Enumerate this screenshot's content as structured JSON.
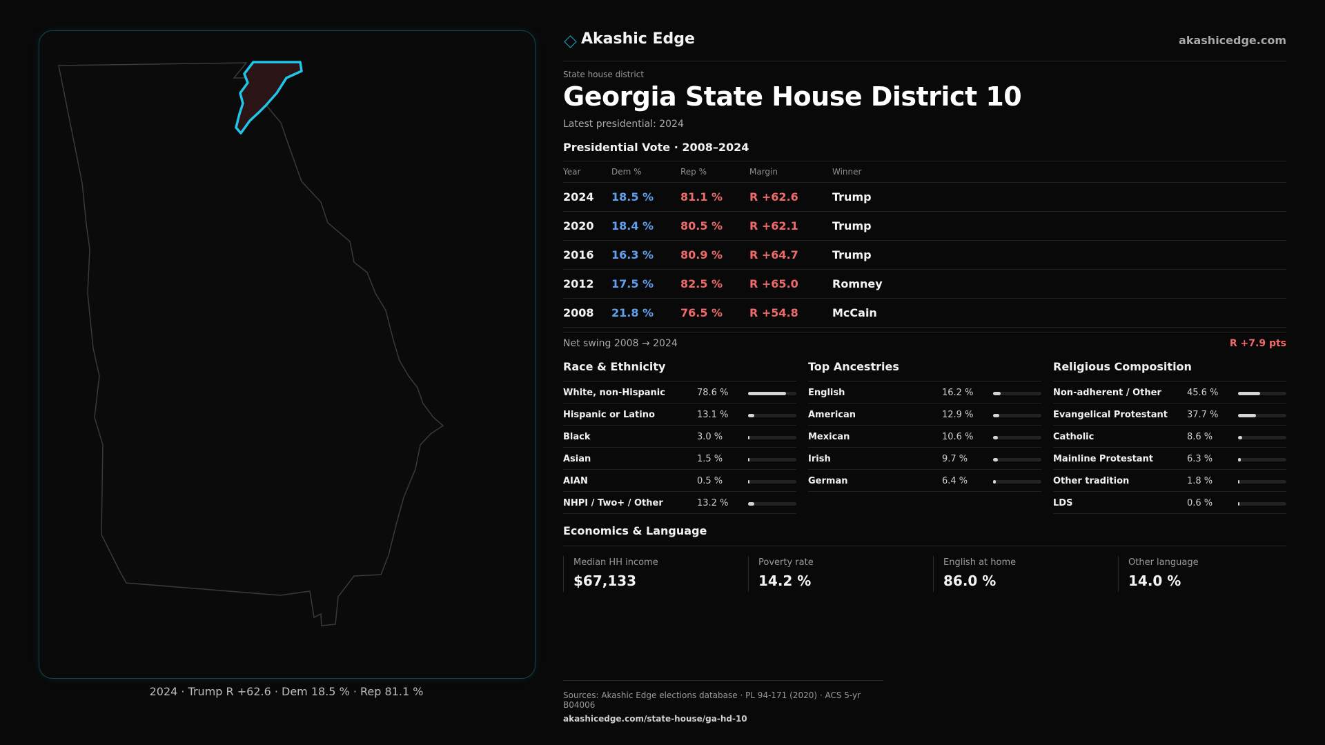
{
  "brand": {
    "name": "Akashic Edge",
    "site": "akashicedge.com"
  },
  "header": {
    "kicker": "State house district",
    "title": "Georgia State House District 10",
    "latest": "Latest presidential: 2024"
  },
  "map": {
    "caption": "2024 · Trump R +62.6 · Dem 18.5 % · Rep 81.1 %",
    "highlight_color": "#1fc6e8"
  },
  "presidential": {
    "heading": "Presidential Vote · 2008–2024",
    "columns": [
      "Year",
      "Dem %",
      "Rep %",
      "Margin",
      "Winner"
    ],
    "rows": [
      {
        "year": "2024",
        "dem": "18.5 %",
        "rep": "81.1 %",
        "margin": "R +62.6",
        "winner": "Trump"
      },
      {
        "year": "2020",
        "dem": "18.4 %",
        "rep": "80.5 %",
        "margin": "R +62.1",
        "winner": "Trump"
      },
      {
        "year": "2016",
        "dem": "16.3 %",
        "rep": "80.9 %",
        "margin": "R +64.7",
        "winner": "Trump"
      },
      {
        "year": "2012",
        "dem": "17.5 %",
        "rep": "82.5 %",
        "margin": "R +65.0",
        "winner": "Romney"
      },
      {
        "year": "2008",
        "dem": "21.8 %",
        "rep": "76.5 %",
        "margin": "R +54.8",
        "winner": "McCain"
      }
    ],
    "swing_label": "Net swing 2008 → 2024",
    "swing_value": "R +7.9 pts"
  },
  "race": {
    "heading": "Race & Ethnicity",
    "items": [
      {
        "label": "White, non-Hispanic",
        "value": "78.6 %",
        "pct": 78.6
      },
      {
        "label": "Hispanic or Latino",
        "value": "13.1 %",
        "pct": 13.1
      },
      {
        "label": "Black",
        "value": "3.0 %",
        "pct": 3.0
      },
      {
        "label": "Asian",
        "value": "1.5 %",
        "pct": 1.5
      },
      {
        "label": "AIAN",
        "value": "0.5 %",
        "pct": 0.5
      },
      {
        "label": "NHPI / Two+ / Other",
        "value": "13.2 %",
        "pct": 13.2
      }
    ]
  },
  "ancestry": {
    "heading": "Top Ancestries",
    "items": [
      {
        "label": "English",
        "value": "16.2 %",
        "pct": 16.2
      },
      {
        "label": "American",
        "value": "12.9 %",
        "pct": 12.9
      },
      {
        "label": "Mexican",
        "value": "10.6 %",
        "pct": 10.6
      },
      {
        "label": "Irish",
        "value": "9.7 %",
        "pct": 9.7
      },
      {
        "label": "German",
        "value": "6.4 %",
        "pct": 6.4
      }
    ]
  },
  "religion": {
    "heading": "Religious Composition",
    "items": [
      {
        "label": "Non-adherent / Other",
        "value": "45.6 %",
        "pct": 45.6
      },
      {
        "label": "Evangelical Protestant",
        "value": "37.7 %",
        "pct": 37.7
      },
      {
        "label": "Catholic",
        "value": "8.6 %",
        "pct": 8.6
      },
      {
        "label": "Mainline Protestant",
        "value": "6.3 %",
        "pct": 6.3
      },
      {
        "label": "Other tradition",
        "value": "1.8 %",
        "pct": 1.8
      },
      {
        "label": "LDS",
        "value": "0.6 %",
        "pct": 0.6
      }
    ]
  },
  "economics": {
    "heading": "Economics & Language",
    "cards": [
      {
        "label": "Median HH income",
        "value": "$67,133"
      },
      {
        "label": "Poverty rate",
        "value": "14.2 %"
      },
      {
        "label": "English at home",
        "value": "86.0 %"
      },
      {
        "label": "Other language",
        "value": "14.0 %"
      }
    ]
  },
  "sources": {
    "line": "Sources: Akashic Edge elections database · PL 94-171 (2020) · ACS 5-yr B04006",
    "url": "akashicedge.com/state-house/ga-hd-10"
  }
}
